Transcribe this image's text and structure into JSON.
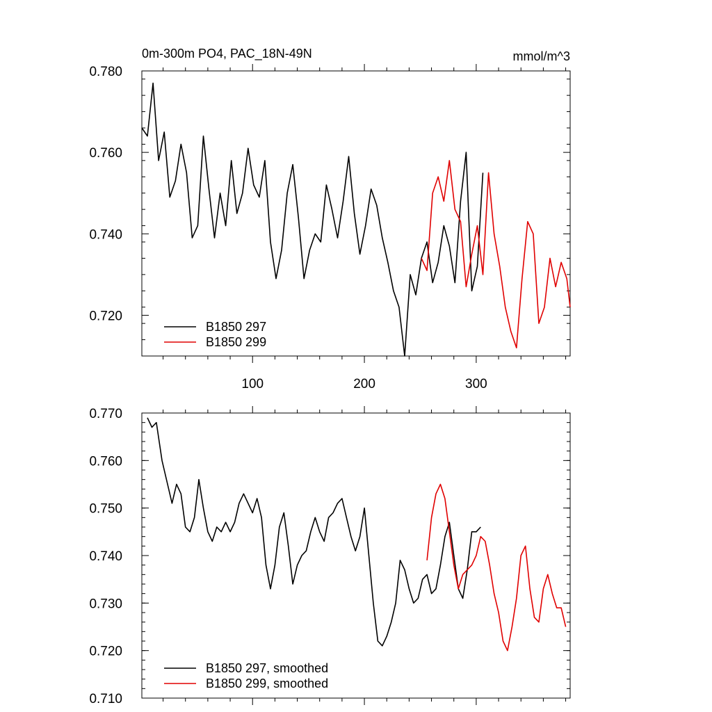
{
  "colors": {
    "series_a": "#000000",
    "series_b": "#e00000"
  },
  "chart_data": [
    {
      "type": "line",
      "title": "0m-300m PO4, PAC_18N-49N",
      "units": "mmol/m^3",
      "xlim": [
        1,
        384
      ],
      "ylim": [
        0.71,
        0.78
      ],
      "xticks": [
        100,
        200,
        300
      ],
      "xtick_labels": [
        "100",
        "200",
        "300"
      ],
      "yticks": [
        0.72,
        0.74,
        0.76,
        0.78
      ],
      "ytick_labels": [
        "0.720",
        "0.740",
        "0.760",
        "0.780"
      ],
      "legend_position": "bottom-left",
      "series": [
        {
          "name": "B1850 297",
          "color": "#000000",
          "x": [
            1,
            6,
            11,
            16,
            21,
            26,
            31,
            36,
            41,
            46,
            51,
            56,
            61,
            66,
            71,
            76,
            81,
            86,
            91,
            96,
            101,
            106,
            111,
            116,
            121,
            126,
            131,
            136,
            141,
            146,
            151,
            156,
            161,
            166,
            171,
            176,
            181,
            186,
            191,
            196,
            201,
            206,
            211,
            216,
            221,
            226,
            231,
            236,
            241,
            246,
            251,
            256,
            261,
            266,
            271,
            276,
            281,
            286,
            291,
            296,
            301,
            306
          ],
          "values": [
            0.766,
            0.764,
            0.777,
            0.758,
            0.765,
            0.749,
            0.753,
            0.762,
            0.755,
            0.739,
            0.742,
            0.764,
            0.751,
            0.739,
            0.75,
            0.742,
            0.758,
            0.745,
            0.75,
            0.761,
            0.752,
            0.749,
            0.758,
            0.738,
            0.729,
            0.736,
            0.75,
            0.757,
            0.744,
            0.729,
            0.736,
            0.74,
            0.738,
            0.752,
            0.746,
            0.739,
            0.748,
            0.759,
            0.745,
            0.735,
            0.742,
            0.751,
            0.747,
            0.739,
            0.733,
            0.726,
            0.722,
            0.71,
            0.73,
            0.725,
            0.734,
            0.738,
            0.728,
            0.733,
            0.742,
            0.737,
            0.728,
            0.748,
            0.76,
            0.726,
            0.732,
            0.755
          ]
        },
        {
          "name": "B1850 299",
          "color": "#e00000",
          "x": [
            251,
            256,
            261,
            266,
            271,
            276,
            281,
            286,
            291,
            296,
            301,
            306,
            311,
            316,
            321,
            326,
            331,
            336,
            341,
            346,
            351,
            356,
            361,
            366,
            371,
            376,
            381,
            384
          ],
          "values": [
            0.734,
            0.731,
            0.75,
            0.754,
            0.748,
            0.758,
            0.746,
            0.743,
            0.727,
            0.735,
            0.742,
            0.73,
            0.755,
            0.74,
            0.732,
            0.722,
            0.716,
            0.712,
            0.729,
            0.743,
            0.74,
            0.718,
            0.722,
            0.734,
            0.727,
            0.733,
            0.729,
            0.722
          ]
        }
      ]
    },
    {
      "type": "line",
      "title": "",
      "xlim": [
        1,
        384
      ],
      "ylim": [
        0.71,
        0.77
      ],
      "xticks": [
        100,
        200,
        300
      ],
      "yticks": [
        0.71,
        0.72,
        0.73,
        0.74,
        0.75,
        0.76,
        0.77
      ],
      "ytick_labels": [
        "0.710",
        "0.720",
        "0.730",
        "0.740",
        "0.750",
        "0.760",
        "0.770"
      ],
      "legend_position": "bottom-left",
      "series": [
        {
          "name": "B1850 297, smoothed",
          "color": "#000000",
          "x": [
            6,
            10,
            14,
            19,
            24,
            28,
            32,
            36,
            40,
            44,
            48,
            52,
            56,
            60,
            64,
            68,
            72,
            76,
            80,
            84,
            88,
            92,
            96,
            100,
            104,
            108,
            112,
            116,
            120,
            124,
            128,
            132,
            136,
            140,
            144,
            148,
            152,
            156,
            160,
            164,
            168,
            172,
            176,
            180,
            184,
            188,
            192,
            196,
            200,
            204,
            208,
            212,
            216,
            220,
            224,
            228,
            232,
            236,
            240,
            244,
            248,
            252,
            256,
            260,
            264,
            268,
            272,
            276,
            280,
            284,
            288,
            292,
            296,
            300,
            304
          ],
          "values": [
            0.769,
            0.767,
            0.768,
            0.76,
            0.755,
            0.751,
            0.755,
            0.753,
            0.746,
            0.745,
            0.748,
            0.756,
            0.75,
            0.745,
            0.743,
            0.746,
            0.745,
            0.747,
            0.745,
            0.747,
            0.751,
            0.753,
            0.751,
            0.749,
            0.752,
            0.748,
            0.738,
            0.733,
            0.738,
            0.746,
            0.749,
            0.742,
            0.734,
            0.738,
            0.74,
            0.741,
            0.745,
            0.748,
            0.745,
            0.743,
            0.748,
            0.749,
            0.751,
            0.752,
            0.748,
            0.744,
            0.741,
            0.744,
            0.75,
            0.74,
            0.73,
            0.722,
            0.721,
            0.723,
            0.726,
            0.73,
            0.739,
            0.737,
            0.733,
            0.73,
            0.731,
            0.735,
            0.736,
            0.732,
            0.733,
            0.738,
            0.744,
            0.747,
            0.74,
            0.733,
            0.731,
            0.737,
            0.745,
            0.745,
            0.746
          ]
        },
        {
          "name": "B1850 299, smoothed",
          "color": "#e00000",
          "x": [
            256,
            260,
            264,
            268,
            272,
            276,
            280,
            284,
            288,
            292,
            296,
            300,
            304,
            308,
            312,
            316,
            320,
            324,
            328,
            332,
            336,
            340,
            344,
            348,
            352,
            356,
            360,
            364,
            368,
            372,
            376,
            380
          ],
          "values": [
            0.739,
            0.748,
            0.753,
            0.755,
            0.752,
            0.745,
            0.738,
            0.733,
            0.736,
            0.737,
            0.738,
            0.74,
            0.744,
            0.743,
            0.738,
            0.732,
            0.728,
            0.722,
            0.72,
            0.725,
            0.731,
            0.74,
            0.742,
            0.733,
            0.727,
            0.726,
            0.733,
            0.736,
            0.732,
            0.729,
            0.729,
            0.725
          ]
        }
      ]
    }
  ]
}
